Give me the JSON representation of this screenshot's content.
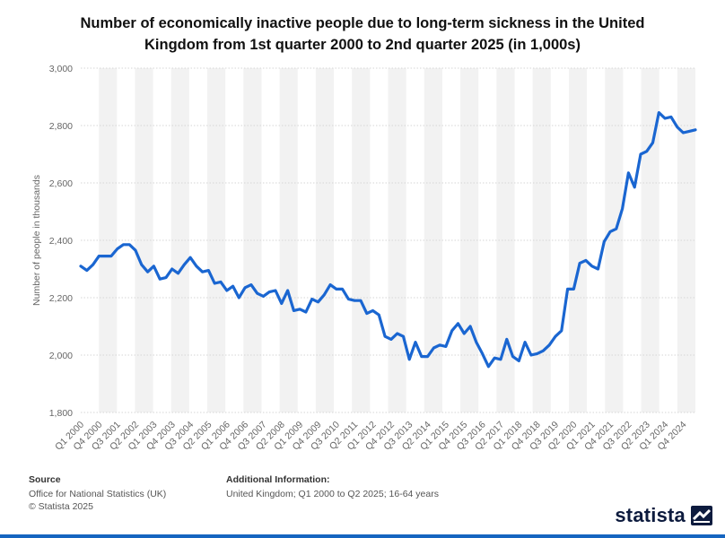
{
  "chart_data": {
    "type": "line",
    "title_line1": "Number of economically inactive people due to long-term sickness in the United",
    "title_line2": "Kingdom from 1st quarter 2000 to 2nd quarter 2025 (in 1,000s)",
    "ylabel": "Number of people in thousands",
    "xlabel": "",
    "ylim": [
      1800,
      3000
    ],
    "yticks": [
      "1,800",
      "2,000",
      "2,200",
      "2,400",
      "2,600",
      "2,800",
      "3,000"
    ],
    "grid": true,
    "x_tick_labels": [
      "Q1 2000",
      "Q4 2000",
      "Q3 2001",
      "Q2 2002",
      "Q1 2003",
      "Q4 2003",
      "Q3 2004",
      "Q2 2005",
      "Q1 2006",
      "Q4 2006",
      "Q3 2007",
      "Q2 2008",
      "Q1 2009",
      "Q4 2009",
      "Q3 2010",
      "Q2 2011",
      "Q1 2012",
      "Q4 2012",
      "Q3 2013",
      "Q2 2014",
      "Q1 2015",
      "Q4 2015",
      "Q3 2016",
      "Q2 2017",
      "Q1 2018",
      "Q4 2018",
      "Q3 2019",
      "Q2 2020",
      "Q1 2021",
      "Q4 2021",
      "Q3 2022",
      "Q2 2023",
      "Q1 2024",
      "Q4 2024"
    ],
    "series": [
      {
        "color": "#1a66d1",
        "values": [
          2310,
          2295,
          2315,
          2345,
          2345,
          2345,
          2370,
          2385,
          2385,
          2365,
          2315,
          2290,
          2310,
          2265,
          2270,
          2300,
          2285,
          2315,
          2340,
          2310,
          2290,
          2295,
          2250,
          2255,
          2225,
          2240,
          2200,
          2235,
          2245,
          2215,
          2205,
          2220,
          2225,
          2180,
          2225,
          2155,
          2160,
          2150,
          2195,
          2185,
          2210,
          2245,
          2230,
          2230,
          2195,
          2190,
          2190,
          2145,
          2155,
          2140,
          2065,
          2055,
          2075,
          2065,
          1985,
          2045,
          1995,
          1995,
          2025,
          2035,
          2030,
          2085,
          2110,
          2075,
          2100,
          2045,
          2005,
          1960,
          1990,
          1985,
          2055,
          1995,
          1980,
          2045,
          2000,
          2005,
          2015,
          2035,
          2065,
          2085,
          2230,
          2230,
          2320,
          2330,
          2310,
          2300,
          2395,
          2430,
          2440,
          2510,
          2635,
          2585,
          2700,
          2710,
          2740,
          2845,
          2825,
          2830,
          2795,
          2775,
          2780,
          2785
        ]
      }
    ]
  },
  "footer": {
    "source_heading": "Source",
    "source_line1": "Office for National Statistics (UK)",
    "source_line2": "© Statista 2025",
    "info_heading": "Additional Information:",
    "info_line1": "United Kingdom; Q1 2000 to Q2 2025; 16-64 years"
  },
  "brand": {
    "name": "statista",
    "icon": "statista-logo-icon"
  }
}
